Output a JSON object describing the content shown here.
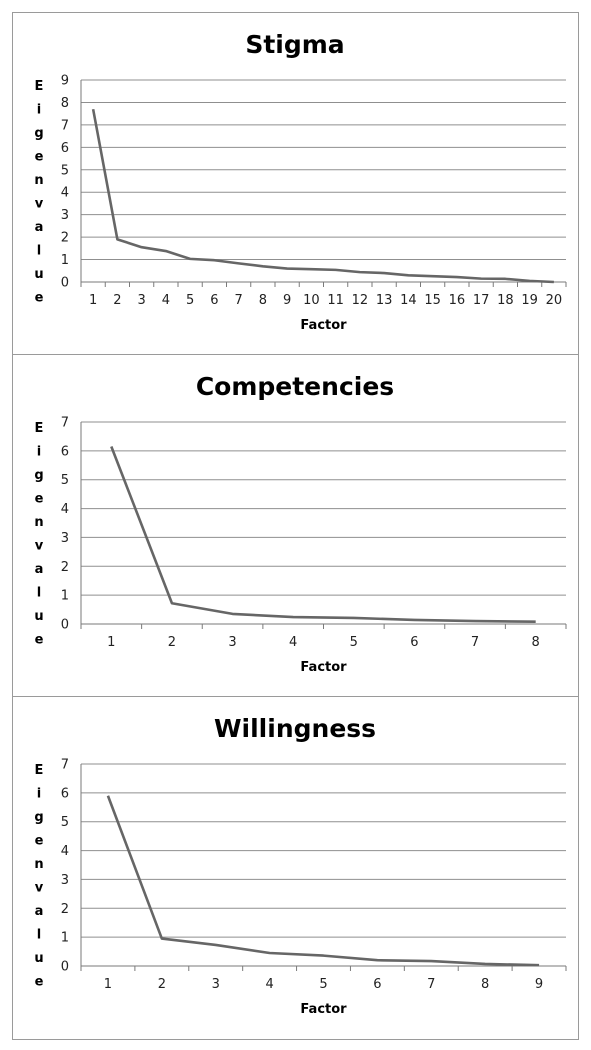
{
  "chart_data": [
    {
      "type": "line",
      "title": "Stigma",
      "xlabel": "Factor",
      "ylabel": "Eigenvalue",
      "x": [
        1,
        2,
        3,
        4,
        5,
        6,
        7,
        8,
        9,
        10,
        11,
        12,
        13,
        14,
        15,
        16,
        17,
        18,
        19,
        20
      ],
      "ylim": [
        0,
        9
      ],
      "yticks": [
        0,
        1,
        2,
        3,
        4,
        5,
        6,
        7,
        8,
        9
      ],
      "grid": true,
      "series": [
        {
          "values": [
            7.7,
            1.9,
            1.55,
            1.38,
            1.03,
            0.97,
            0.83,
            0.7,
            0.6,
            0.57,
            0.54,
            0.44,
            0.4,
            0.3,
            0.26,
            0.22,
            0.15,
            0.14,
            0.05,
            0.0
          ]
        }
      ],
      "color": "#666666"
    },
    {
      "type": "line",
      "title": "Competencies",
      "xlabel": "Factor",
      "ylabel": "Eigenvalue",
      "x": [
        1,
        2,
        3,
        4,
        5,
        6,
        7,
        8
      ],
      "ylim": [
        0,
        7
      ],
      "yticks": [
        0,
        1,
        2,
        3,
        4,
        5,
        6,
        7
      ],
      "grid": true,
      "series": [
        {
          "values": [
            6.15,
            0.72,
            0.35,
            0.24,
            0.21,
            0.14,
            0.1,
            0.08
          ]
        }
      ],
      "color": "#666666"
    },
    {
      "type": "line",
      "title": "Willingness",
      "xlabel": "Factor",
      "ylabel": "Eigenvalue",
      "x": [
        1,
        2,
        3,
        4,
        5,
        6,
        7,
        8,
        9
      ],
      "ylim": [
        0,
        7
      ],
      "yticks": [
        0,
        1,
        2,
        3,
        4,
        5,
        6,
        7
      ],
      "grid": true,
      "series": [
        {
          "values": [
            5.9,
            0.95,
            0.73,
            0.45,
            0.36,
            0.2,
            0.17,
            0.07,
            0.03
          ]
        }
      ],
      "color": "#666666"
    }
  ]
}
